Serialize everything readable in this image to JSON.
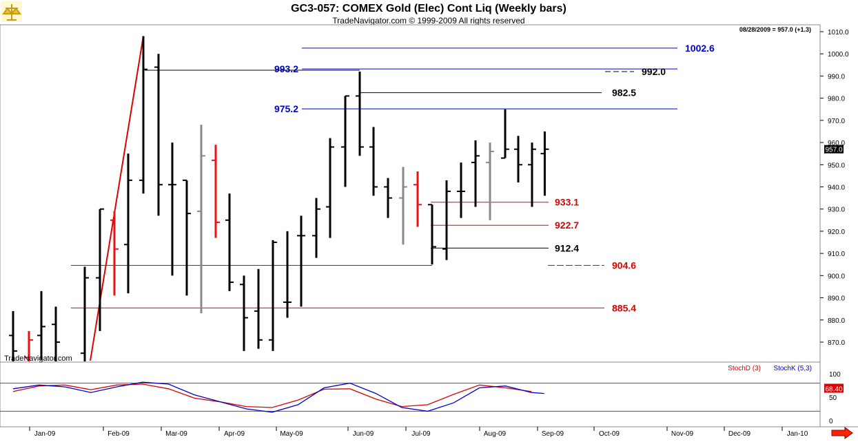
{
  "header": {
    "title": "GC3-057:  COMEX Gold (Elec) Cont Liq  (Weekly bars)",
    "subtitle": "TradeNavigator.com © 1999-2009 All rights reserved",
    "last_readout": "08/28/2009 = 957.0 (+1.3)",
    "watermark": "TradeNavigator.com",
    "logo_icon": "scale-icon"
  },
  "colors": {
    "up_bar": "#000000",
    "down_bar": "#ee1111",
    "neutral_bar": "#888888",
    "resistance": "#0000cc",
    "support": "#dd0000",
    "marker": "#000000",
    "stoch_d": "#dd0000",
    "stoch_k": "#0000cc",
    "price_tag_bg": "#000000",
    "stoch_tag_bg": "#dd0000"
  },
  "chart_data": [
    {
      "type": "ohlc",
      "title": "GC3-057:  COMEX Gold (Elec) Cont Liq  (Weekly bars)",
      "ylim": [
        860,
        1012
      ],
      "y_ticks": [
        870.0,
        880.0,
        890.0,
        900.0,
        910.0,
        920.0,
        930.0,
        940.0,
        950.0,
        960.0,
        970.0,
        980.0,
        990.0,
        1000.0,
        1010.0
      ],
      "x_ticks": [
        "Jan-09",
        "Feb-09",
        "Mar-09",
        "Apr-09",
        "May-09",
        "Jun-09",
        "Jul-09",
        "Aug-09",
        "Sep-09",
        "Oct-09",
        "Nov-09",
        "Dec-09",
        "Jan-10"
      ],
      "last_price": "957.0",
      "bars": [
        {
          "week": 0,
          "o": 873,
          "h": 884,
          "l": 858,
          "c": 866,
          "color": "up"
        },
        {
          "week": 1,
          "o": 863,
          "h": 875,
          "l": 860,
          "c": 871,
          "color": "down"
        },
        {
          "week": 2,
          "o": 873,
          "h": 893,
          "l": 862,
          "c": 877,
          "color": "up"
        },
        {
          "week": 3,
          "o": 878,
          "h": 886,
          "l": 860,
          "c": 870,
          "color": "up"
        },
        {
          "week": 5,
          "o": 865,
          "h": 904,
          "l": 858,
          "c": 899,
          "color": "up"
        },
        {
          "week": 6,
          "o": 899,
          "h": 930,
          "l": 875,
          "c": 930,
          "color": "up"
        },
        {
          "week": 7,
          "o": 925,
          "h": 929,
          "l": 891,
          "c": 912,
          "color": "down"
        },
        {
          "week": 8,
          "o": 914,
          "h": 955,
          "l": 892,
          "c": 943,
          "color": "up"
        },
        {
          "week": 9,
          "o": 943,
          "h": 1008,
          "l": 937,
          "c": 993,
          "color": "up"
        },
        {
          "week": 10,
          "o": 994,
          "h": 1000,
          "l": 927,
          "c": 941,
          "color": "up"
        },
        {
          "week": 11,
          "o": 941,
          "h": 960,
          "l": 900,
          "c": 941,
          "color": "up"
        },
        {
          "week": 12,
          "o": 943,
          "h": 943,
          "l": 891,
          "c": 928,
          "color": "up"
        },
        {
          "week": 13,
          "o": 929,
          "h": 968,
          "l": 883,
          "c": 954,
          "color": "neutral"
        },
        {
          "week": 14,
          "o": 952,
          "h": 959,
          "l": 917,
          "c": 924,
          "color": "down"
        },
        {
          "week": 15,
          "o": 925,
          "h": 937,
          "l": 893,
          "c": 897,
          "color": "up"
        },
        {
          "week": 16,
          "o": 896,
          "h": 900,
          "l": 866,
          "c": 881,
          "color": "up"
        },
        {
          "week": 17,
          "o": 884,
          "h": 903,
          "l": 867,
          "c": 871,
          "color": "up"
        },
        {
          "week": 18,
          "o": 871,
          "h": 916,
          "l": 866,
          "c": 915,
          "color": "up"
        },
        {
          "week": 19,
          "o": 888,
          "h": 920,
          "l": 881,
          "c": 888,
          "color": "up"
        },
        {
          "week": 20,
          "o": 918,
          "h": 927,
          "l": 886,
          "c": 918,
          "color": "up"
        },
        {
          "week": 21,
          "o": 918,
          "h": 935,
          "l": 908,
          "c": 930,
          "color": "up"
        },
        {
          "week": 22,
          "o": 931,
          "h": 962,
          "l": 917,
          "c": 958,
          "color": "up"
        },
        {
          "week": 23,
          "o": 958,
          "h": 981,
          "l": 940,
          "c": 981,
          "color": "up"
        },
        {
          "week": 24,
          "o": 981,
          "h": 992,
          "l": 954,
          "c": 958,
          "color": "up"
        },
        {
          "week": 25,
          "o": 958,
          "h": 967,
          "l": 936,
          "c": 940,
          "color": "up"
        },
        {
          "week": 26,
          "o": 940,
          "h": 944,
          "l": 926,
          "c": 935,
          "color": "up"
        },
        {
          "week": 27,
          "o": 935,
          "h": 949,
          "l": 914,
          "c": 940,
          "color": "neutral"
        },
        {
          "week": 28,
          "o": 941,
          "h": 947,
          "l": 922,
          "c": 932,
          "color": "down"
        },
        {
          "week": 29,
          "o": 932,
          "h": 932,
          "l": 905,
          "c": 913,
          "color": "up"
        },
        {
          "week": 30,
          "o": 912,
          "h": 943,
          "l": 907,
          "c": 938,
          "color": "up"
        },
        {
          "week": 31,
          "o": 938,
          "h": 951,
          "l": 926,
          "c": 938,
          "color": "up"
        },
        {
          "week": 32,
          "o": 951,
          "h": 961,
          "l": 931,
          "c": 954,
          "color": "up"
        },
        {
          "week": 33,
          "o": 951,
          "h": 960,
          "l": 925,
          "c": 956,
          "color": "neutral"
        },
        {
          "week": 34,
          "o": 953,
          "h": 975,
          "l": 953,
          "c": 957,
          "color": "up"
        },
        {
          "week": 35,
          "o": 957,
          "h": 963,
          "l": 942,
          "c": 950,
          "color": "up"
        },
        {
          "week": 36,
          "o": 950,
          "h": 960,
          "l": 931,
          "c": 957,
          "color": "up"
        },
        {
          "week": 37,
          "o": 955,
          "h": 965,
          "l": 936,
          "c": 957,
          "color": "up"
        }
      ],
      "trendline": {
        "from": {
          "week": 4,
          "price": 862
        },
        "to": {
          "week": 9,
          "price": 1008
        },
        "color": "#dd0000"
      },
      "levels": [
        {
          "label": "1002.6",
          "price": 1002.6,
          "color": "blue",
          "from_week": 21.5,
          "to_week": 58
        },
        {
          "label": "993.2",
          "price": 993.2,
          "color": "blue",
          "from_week": 21.5,
          "to_week": 58,
          "label_side": "left"
        },
        {
          "label": "975.2",
          "price": 975.2,
          "color": "blue",
          "from_week": 21.5,
          "to_week": 58,
          "label_side": "left"
        },
        {
          "label": "992.0",
          "price": 992.0,
          "color": "black",
          "from_week": 50,
          "to_week": 53
        },
        {
          "label": "982.5",
          "price": 982.5,
          "color": "black",
          "from_week": 24,
          "to_week": 50
        },
        {
          "label": "933.1",
          "price": 933.1,
          "color": "red",
          "from_week": 28,
          "to_week": 46
        },
        {
          "label": "922.7",
          "price": 922.7,
          "color": "red",
          "from_week": 28,
          "to_week": 46
        },
        {
          "label": "912.4",
          "price": 912.4,
          "color": "black",
          "from_week": 29,
          "to_week": 46
        },
        {
          "label": "904.6",
          "price": 904.6,
          "color": "red",
          "from_week": 4,
          "to_week": 52
        },
        {
          "label": "885.4",
          "price": 885.4,
          "color": "red",
          "from_week": 4,
          "to_week": 52
        }
      ],
      "marker_992_line": {
        "price": 992.6,
        "from_week": 9.5,
        "to_week": 24
      }
    },
    {
      "type": "line",
      "title": "",
      "ylim": [
        0,
        100
      ],
      "y_ticks": [
        "100",
        "50",
        "0"
      ],
      "reference_lines": [
        80,
        20
      ],
      "legend": [
        "StochD (3)",
        "StochK (5,3)"
      ],
      "last_value": "68.40",
      "series": [
        {
          "name": "StochD (3)",
          "color": "#dd0000",
          "points": [
            [
              0,
              62
            ],
            [
              2,
              74
            ],
            [
              4,
              76
            ],
            [
              6,
              66
            ],
            [
              8,
              76
            ],
            [
              10,
              78
            ],
            [
              12,
              68
            ],
            [
              14,
              48
            ],
            [
              16,
              40
            ],
            [
              18,
              30
            ],
            [
              20,
              28
            ],
            [
              22,
              44
            ],
            [
              24,
              67
            ],
            [
              26,
              68
            ],
            [
              28,
              46
            ],
            [
              30,
              30
            ],
            [
              32,
              34
            ],
            [
              34,
              56
            ],
            [
              36,
              76
            ],
            [
              38,
              70
            ],
            [
              40,
              62
            ]
          ]
        },
        {
          "name": "StochK (5,3)",
          "color": "#0000cc",
          "points": [
            [
              0,
              68
            ],
            [
              2,
              76
            ],
            [
              4,
              72
            ],
            [
              6,
              60
            ],
            [
              8,
              72
            ],
            [
              10,
              82
            ],
            [
              12,
              78
            ],
            [
              14,
              55
            ],
            [
              16,
              40
            ],
            [
              18,
              25
            ],
            [
              20,
              18
            ],
            [
              22,
              34
            ],
            [
              24,
              70
            ],
            [
              26,
              80
            ],
            [
              28,
              58
            ],
            [
              30,
              28
            ],
            [
              32,
              20
            ],
            [
              34,
              38
            ],
            [
              36,
              70
            ],
            [
              38,
              74
            ],
            [
              40,
              60
            ],
            [
              41,
              58
            ]
          ]
        }
      ]
    }
  ]
}
